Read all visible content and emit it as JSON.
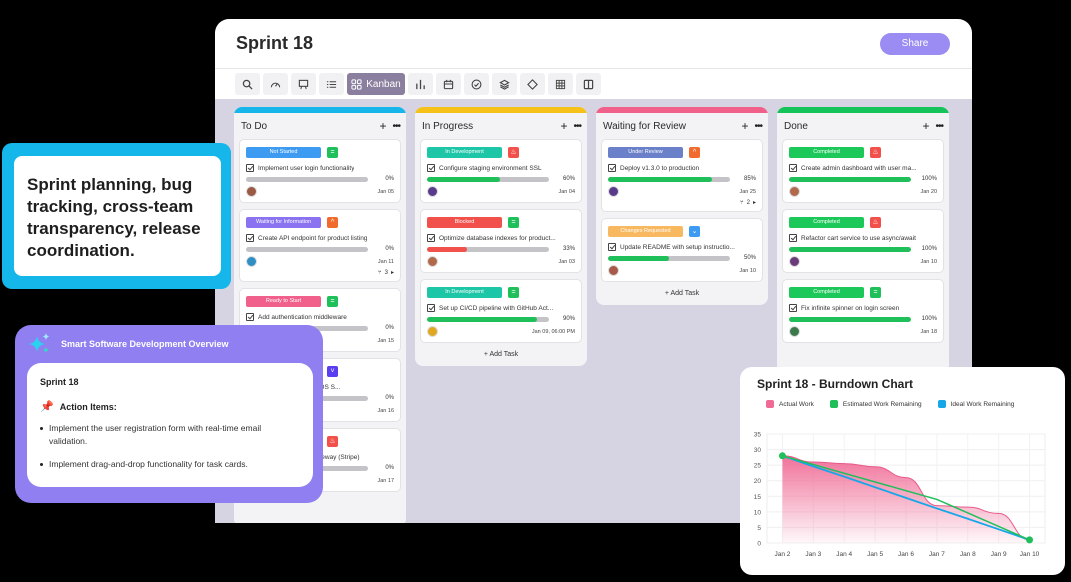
{
  "window": {
    "title": "Sprint 18",
    "share_label": "Share",
    "toolbar": [
      {
        "icon": "search-icon",
        "label": ""
      },
      {
        "icon": "gauge-icon",
        "label": ""
      },
      {
        "icon": "presentation-icon",
        "label": ""
      },
      {
        "icon": "list-icon",
        "label": ""
      },
      {
        "icon": "kanban-icon",
        "label": "Kanban",
        "active": true
      },
      {
        "icon": "bar-chart-icon",
        "label": ""
      },
      {
        "icon": "calendar-icon",
        "label": ""
      },
      {
        "icon": "check-circle-icon",
        "label": ""
      },
      {
        "icon": "layers-icon",
        "label": ""
      },
      {
        "icon": "diamond-icon",
        "label": ""
      },
      {
        "icon": "grid-icon",
        "label": ""
      },
      {
        "icon": "columns-icon",
        "label": ""
      }
    ]
  },
  "columns": [
    {
      "title": "To Do",
      "color": "#16b5ea",
      "cards": [
        {
          "status": "Not Started",
          "status_color": "#3d9bf2",
          "priority": "medium",
          "priority_color": "#1fbf5a",
          "task": "Implement user login functionality",
          "progress": 0,
          "progress_label": "0%",
          "date": "Jan 05"
        },
        {
          "status": "Waiting for Information",
          "status_color": "#8a72f0",
          "priority": "high",
          "priority_color": "#f26b2e",
          "task": "Create API endpoint for product listing",
          "progress": 0,
          "progress_label": "0%",
          "date": "Jan 11",
          "subtasks": "3"
        },
        {
          "status": "Ready to Start",
          "status_color": "#f0608a",
          "priority": "medium",
          "priority_color": "#1fbf5a",
          "task": "Add authentication middleware",
          "progress": 0,
          "progress_label": "0%",
          "date": "Jan 15"
        },
        {
          "status": "",
          "status_color": "#ffffff",
          "priority": "low",
          "priority_color": "#5a3ff0",
          "task": "Fix layout breaks on iOS S...",
          "progress": 0,
          "progress_label": "0%",
          "date": "Jan 16"
        },
        {
          "status": "",
          "status_color": "#ffffff",
          "priority": "urgent",
          "priority_color": "#f2504a",
          "task": "Integrate payment gateway (Stripe)",
          "progress": 0,
          "progress_label": "0%",
          "date": "Jan 17"
        }
      ]
    },
    {
      "title": "In Progress",
      "color": "#f6c21a",
      "cards": [
        {
          "status": "In Development",
          "status_color": "#1ec6a8",
          "priority": "urgent",
          "priority_color": "#f2504a",
          "task": "Configure staging environment SSL",
          "progress": 60,
          "progress_label": "60%",
          "progress_color": "#1fbf5a",
          "date": "Jan 04"
        },
        {
          "status": "Blocked",
          "status_color": "#f2504a",
          "priority": "medium",
          "priority_color": "#1fbf5a",
          "task": "Optimize database indexes for product...",
          "progress": 33,
          "progress_label": "33%",
          "progress_color": "#f2504a",
          "date": "Jan 03"
        },
        {
          "status": "In Development",
          "status_color": "#1ec6a8",
          "priority": "medium",
          "priority_color": "#1fbf5a",
          "task": "Set up CI/CD pipeline with GitHub Act...",
          "progress": 90,
          "progress_label": "90%",
          "progress_color": "#1fbf5a",
          "date": "Jan 09, 06:00 PM"
        }
      ],
      "add_label": "+ Add Task"
    },
    {
      "title": "Waiting for Review",
      "color": "#f06088",
      "cards": [
        {
          "status": "Under Review",
          "status_color": "#6a80c8",
          "priority": "high",
          "priority_color": "#f26b2e",
          "task": "Deploy v1.3.0 to production",
          "progress": 85,
          "progress_label": "85%",
          "progress_color": "#1fbf5a",
          "date": "Jan 25",
          "subtasks": "2"
        },
        {
          "status": "Changes Requested",
          "status_color": "#f8b860",
          "priority": "lowest",
          "priority_color": "#3d9bf2",
          "task": "Update README with setup instructio...",
          "progress": 50,
          "progress_label": "50%",
          "progress_color": "#1fbf5a",
          "date": "Jan 10"
        }
      ],
      "add_label": "+ Add Task"
    },
    {
      "title": "Done",
      "color": "#14c35a",
      "cards": [
        {
          "status": "Completed",
          "status_color": "#1cc85a",
          "priority": "urgent",
          "priority_color": "#f2504a",
          "task": "Create admin dashboard with user ma...",
          "progress": 100,
          "progress_label": "100%",
          "progress_color": "#1fbf5a",
          "date": "Jan 20"
        },
        {
          "status": "Completed",
          "status_color": "#1cc85a",
          "priority": "urgent",
          "priority_color": "#f2504a",
          "task": "Refactor cart service to use async/await",
          "progress": 100,
          "progress_label": "100%",
          "progress_color": "#1fbf5a",
          "date": "Jan 10"
        },
        {
          "status": "Completed",
          "status_color": "#1cc85a",
          "priority": "medium",
          "priority_color": "#1fbf5a",
          "task": "Fix infinite spinner on login screen",
          "progress": 100,
          "progress_label": "100%",
          "progress_color": "#1fbf5a",
          "date": "Jan 18"
        }
      ]
    }
  ],
  "callout": {
    "text": "Sprint planning, bug tracking, cross-team transparency, release coordination."
  },
  "overview": {
    "title": "Smart Software Development Overview",
    "sprint": "Sprint 18",
    "action_heading": "Action Items:",
    "items": [
      "Implement the user registration form with real-time email validation.",
      "Implement drag-and-drop functionality for task cards."
    ]
  },
  "burndown": {
    "title": "Sprint 18 - Burndown Chart"
  },
  "chart_data": {
    "type": "line",
    "title": "Sprint 18 - Burndown Chart",
    "xlabel": "",
    "ylabel": "",
    "categories": [
      "Jan 2",
      "Jan 3",
      "Jan 4",
      "Jan 5",
      "Jan 6",
      "Jan 7",
      "Jan 8",
      "Jan 9",
      "Jan 10"
    ],
    "ylim": [
      0,
      35
    ],
    "yticks": [
      0,
      5,
      10,
      15,
      20,
      25,
      30,
      35
    ],
    "grid": true,
    "legend_position": "top",
    "series": [
      {
        "name": "Actual Work",
        "color": "#f06a95",
        "style": "area",
        "values": [
          28,
          26,
          25.5,
          24.5,
          21,
          12,
          11.5,
          9.5,
          1
        ]
      },
      {
        "name": "Estimated Work Remaining",
        "color": "#1fbf5a",
        "style": "line",
        "values": [
          28,
          null,
          null,
          null,
          null,
          14,
          null,
          null,
          1
        ]
      },
      {
        "name": "Ideal Work Remaining",
        "color": "#16a7e8",
        "style": "line",
        "values": [
          28,
          24.6,
          21.3,
          17.9,
          14.5,
          11.1,
          7.8,
          4.4,
          1
        ]
      }
    ]
  }
}
